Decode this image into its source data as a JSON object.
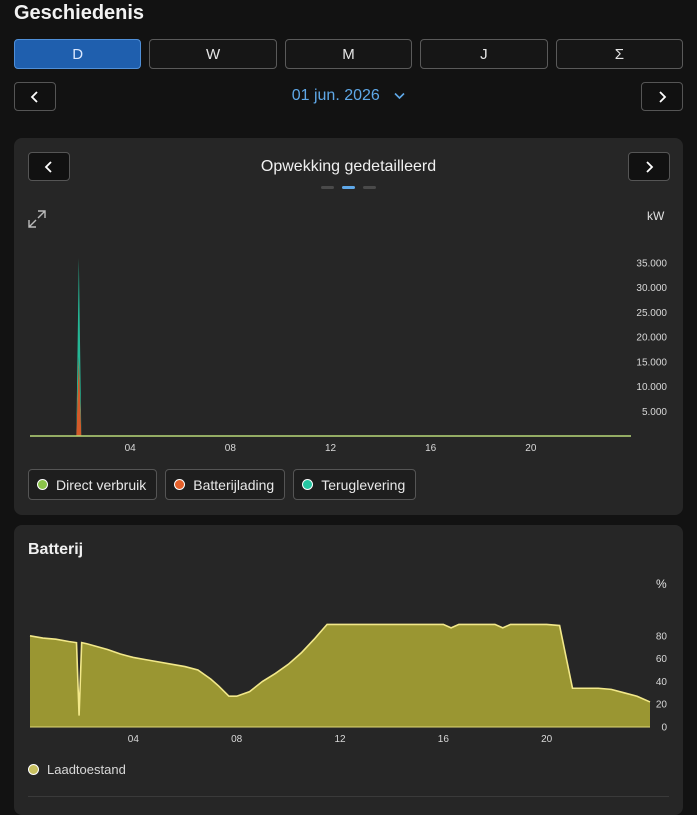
{
  "header": {
    "title": "Geschiedenis"
  },
  "period_tabs": [
    {
      "label": "D",
      "active": true
    },
    {
      "label": "W",
      "active": false
    },
    {
      "label": "M",
      "active": false
    },
    {
      "label": "J",
      "active": false
    },
    {
      "label": "Σ",
      "active": false
    }
  ],
  "date_nav": {
    "date_label": "01 jun. 2026"
  },
  "generation_card": {
    "title": "Opwekking gedetailleerd",
    "page_indicator": {
      "count": 3,
      "active_index": 1
    },
    "unit": "kW",
    "legend": [
      {
        "label": "Direct verbruik",
        "color": "#8bc34a"
      },
      {
        "label": "Batterijlading",
        "color": "#e5602a"
      },
      {
        "label": "Teruglevering",
        "color": "#26c6a2"
      }
    ]
  },
  "battery_card": {
    "title": "Batterij",
    "unit": "%",
    "legend": [
      {
        "label": "Laadtoestand",
        "color": "#c8c060"
      }
    ]
  },
  "chart_data": [
    {
      "type": "area",
      "title": "Opwekking gedetailleerd",
      "ylabel": "kW",
      "x_ticks": [
        "04",
        "08",
        "12",
        "16",
        "20"
      ],
      "y_ticks": [
        "5.000",
        "10.000",
        "15.000",
        "20.000",
        "25.000",
        "30.000",
        "35.000"
      ],
      "ylim": [
        0,
        36000
      ],
      "xlim": [
        0,
        24
      ],
      "series": [
        {
          "name": "Direct verbruik",
          "color": "#8bc34a",
          "x": [
            0,
            1.85,
            1.95,
            2.05,
            24
          ],
          "values": [
            0,
            0,
            0,
            0,
            0
          ]
        },
        {
          "name": "Batterijlading",
          "color": "#e5602a",
          "x": [
            0,
            1.85,
            1.95,
            2.05,
            24
          ],
          "values": [
            0,
            0,
            16000,
            0,
            0
          ]
        },
        {
          "name": "Teruglevering",
          "color": "#26c6a2",
          "x": [
            0,
            1.85,
            1.95,
            2.05,
            24
          ],
          "values": [
            0,
            0,
            20000,
            0,
            0
          ]
        }
      ]
    },
    {
      "type": "area",
      "title": "Batterij",
      "ylabel": "%",
      "x_ticks": [
        "04",
        "08",
        "12",
        "16",
        "20"
      ],
      "y_ticks": [
        "0",
        "20",
        "40",
        "60",
        "80"
      ],
      "ylim": [
        0,
        100
      ],
      "xlim": [
        0,
        24
      ],
      "series": [
        {
          "name": "Laadtoestand",
          "color": "#9a9632",
          "x": [
            0,
            0.5,
            1,
            1.5,
            1.8,
            1.9,
            2.0,
            2.2,
            3,
            3.5,
            4,
            4.5,
            5,
            5.5,
            6,
            6.5,
            7,
            7.3,
            7.7,
            8,
            8.5,
            9,
            9.5,
            10,
            10.5,
            11,
            11.5,
            12,
            13,
            14,
            15,
            16,
            16.3,
            16.6,
            17,
            18,
            18.3,
            18.6,
            19,
            19.5,
            20,
            20.5,
            21,
            22,
            22.5,
            23,
            23.5,
            24
          ],
          "values": [
            80,
            78,
            77,
            75,
            74,
            10,
            74,
            73,
            68,
            64,
            61,
            59,
            57,
            55,
            53,
            50,
            42,
            36,
            27,
            27,
            31,
            40,
            47,
            55,
            65,
            77,
            90,
            90,
            90,
            90,
            90,
            90,
            87,
            90,
            90,
            90,
            87,
            90,
            90,
            90,
            90,
            89,
            34,
            34,
            33,
            30,
            27,
            22
          ]
        }
      ]
    }
  ]
}
